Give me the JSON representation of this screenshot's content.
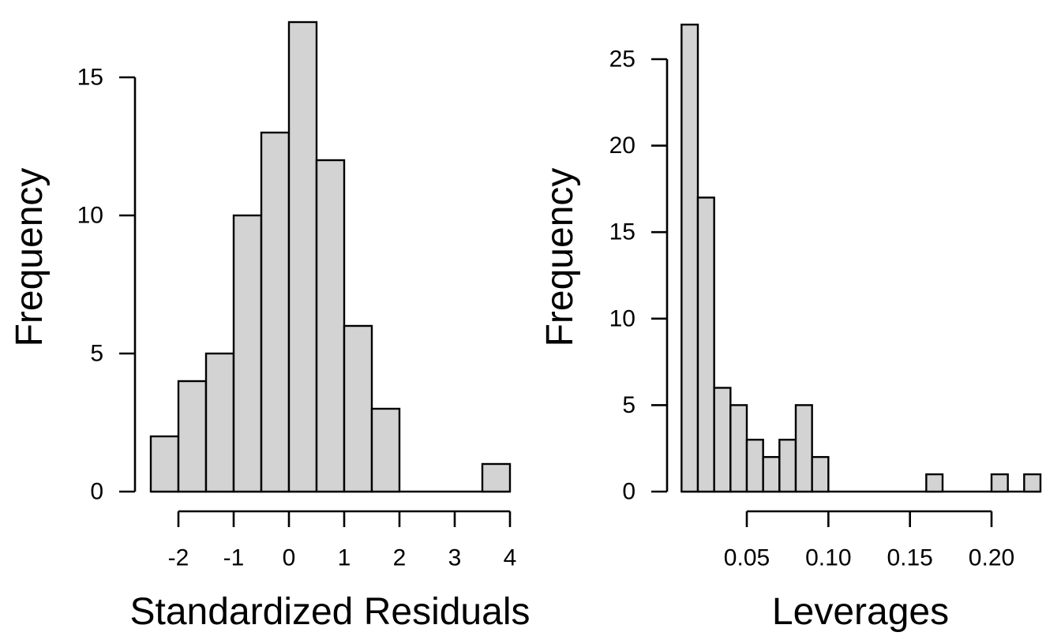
{
  "figure": {
    "background": "#ffffff",
    "text_color": "#000000"
  },
  "chart_data": [
    {
      "type": "bar",
      "subtype": "histogram",
      "title": "",
      "xlabel": "Standardized Residuals",
      "ylabel": "Frequency",
      "bins": {
        "start": -2.5,
        "width": 0.5
      },
      "counts": [
        2,
        4,
        5,
        10,
        13,
        17,
        12,
        6,
        3,
        0,
        0,
        0,
        1
      ],
      "x_ticks": {
        "values": [
          -2,
          -1,
          0,
          1,
          2,
          3,
          4
        ],
        "labels": [
          "-2",
          "-1",
          "0",
          "1",
          "2",
          "3",
          "4"
        ]
      },
      "y_ticks": {
        "values": [
          0,
          5,
          10,
          15
        ],
        "labels": [
          "0",
          "5",
          "10",
          "15"
        ]
      },
      "xlim": [
        -2.5,
        4.0
      ],
      "ylim": [
        0,
        17
      ],
      "grid": false,
      "legend": "none",
      "bar_fill": "#d3d3d3",
      "bar_stroke": "#000000"
    },
    {
      "type": "bar",
      "subtype": "histogram",
      "title": "",
      "xlabel": "Leverages",
      "ylabel": "Frequency",
      "bins": {
        "start": 0.01,
        "width": 0.01
      },
      "counts": [
        27,
        17,
        6,
        5,
        3,
        2,
        3,
        5,
        2,
        0,
        0,
        0,
        0,
        0,
        0,
        1,
        0,
        0,
        0,
        1,
        0,
        1
      ],
      "x_ticks": {
        "values": [
          0.05,
          0.1,
          0.15,
          0.2
        ],
        "labels": [
          "0.05",
          "0.10",
          "0.15",
          "0.20"
        ]
      },
      "y_ticks": {
        "values": [
          0,
          5,
          10,
          15,
          20,
          25
        ],
        "labels": [
          "0",
          "5",
          "10",
          "15",
          "20",
          "25"
        ]
      },
      "xlim": [
        0.01,
        0.23
      ],
      "ylim": [
        0,
        27
      ],
      "grid": false,
      "legend": "none",
      "bar_fill": "#d3d3d3",
      "bar_stroke": "#000000"
    }
  ]
}
